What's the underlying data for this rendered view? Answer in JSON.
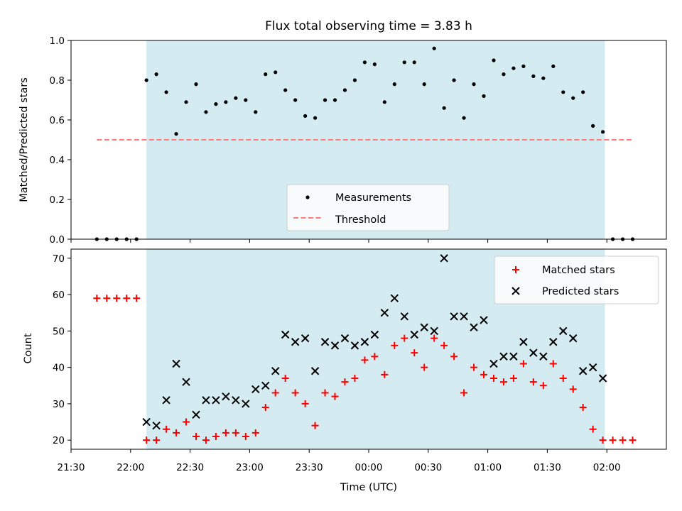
{
  "chart_data": [
    {
      "type": "scatter",
      "title": "Flux total observing time = 3.83 h",
      "ylabel": "Matched/Predicted stars",
      "ylim": [
        0,
        1.0
      ],
      "yticks": [
        0.0,
        0.2,
        0.4,
        0.6,
        0.8,
        1.0
      ],
      "yticklabels": [
        "0.0",
        "0.2",
        "0.4",
        "0.6",
        "0.8",
        "1.0"
      ],
      "shaded_interval": [
        "22:08",
        "01:59"
      ],
      "shade_color": "#d4ebf1",
      "legend_position": "lower-center",
      "series": [
        {
          "name": "Measurements",
          "marker": "dot",
          "color": "#000000",
          "points": [
            [
              "21:43",
              0.0
            ],
            [
              "21:48",
              0.0
            ],
            [
              "21:53",
              0.0
            ],
            [
              "21:58",
              0.0
            ],
            [
              "22:03",
              0.0
            ],
            [
              "22:08",
              0.8
            ],
            [
              "22:13",
              0.83
            ],
            [
              "22:18",
              0.74
            ],
            [
              "22:23",
              0.53
            ],
            [
              "22:28",
              0.69
            ],
            [
              "22:33",
              0.78
            ],
            [
              "22:38",
              0.64
            ],
            [
              "22:43",
              0.68
            ],
            [
              "22:48",
              0.69
            ],
            [
              "22:53",
              0.71
            ],
            [
              "22:58",
              0.7
            ],
            [
              "23:03",
              0.64
            ],
            [
              "23:08",
              0.83
            ],
            [
              "23:13",
              0.84
            ],
            [
              "23:18",
              0.75
            ],
            [
              "23:23",
              0.7
            ],
            [
              "23:28",
              0.62
            ],
            [
              "23:33",
              0.61
            ],
            [
              "23:38",
              0.7
            ],
            [
              "23:43",
              0.7
            ],
            [
              "23:48",
              0.75
            ],
            [
              "23:53",
              0.8
            ],
            [
              "23:58",
              0.89
            ],
            [
              "00:03",
              0.88
            ],
            [
              "00:08",
              0.69
            ],
            [
              "00:13",
              0.78
            ],
            [
              "00:18",
              0.89
            ],
            [
              "00:23",
              0.89
            ],
            [
              "00:28",
              0.78
            ],
            [
              "00:33",
              0.96
            ],
            [
              "00:38",
              0.66
            ],
            [
              "00:43",
              0.8
            ],
            [
              "00:48",
              0.61
            ],
            [
              "00:53",
              0.78
            ],
            [
              "00:58",
              0.72
            ],
            [
              "01:03",
              0.9
            ],
            [
              "01:08",
              0.83
            ],
            [
              "01:13",
              0.86
            ],
            [
              "01:18",
              0.87
            ],
            [
              "01:23",
              0.82
            ],
            [
              "01:28",
              0.81
            ],
            [
              "01:33",
              0.87
            ],
            [
              "01:38",
              0.74
            ],
            [
              "01:43",
              0.71
            ],
            [
              "01:48",
              0.74
            ],
            [
              "01:53",
              0.57
            ],
            [
              "01:58",
              0.54
            ],
            [
              "02:03",
              0.0
            ],
            [
              "02:08",
              0.0
            ],
            [
              "02:13",
              0.0
            ]
          ]
        },
        {
          "name": "Threshold",
          "marker": "dashed-line",
          "color": "#ff7b7b",
          "points": [
            [
              "21:43",
              0.5
            ],
            [
              "02:13",
              0.5
            ]
          ]
        }
      ]
    },
    {
      "type": "scatter",
      "xlabel": "Time (UTC)",
      "ylabel": "Count",
      "ylim": [
        17.5,
        72.5
      ],
      "yticks": [
        20,
        30,
        40,
        50,
        60,
        70
      ],
      "yticklabels": [
        "20",
        "30",
        "40",
        "50",
        "60",
        "70"
      ],
      "xticks": [
        "21:30",
        "22:00",
        "22:30",
        "23:00",
        "23:30",
        "00:00",
        "00:30",
        "01:00",
        "01:30",
        "02:00"
      ],
      "xlim": [
        "21:30",
        "02:30"
      ],
      "shaded_interval": [
        "22:08",
        "01:59"
      ],
      "shade_color": "#d4ebf1",
      "legend_position": "top-right",
      "series": [
        {
          "name": "Matched stars",
          "marker": "plus",
          "color": "#ff0000",
          "points": [
            [
              "21:43",
              59
            ],
            [
              "21:48",
              59
            ],
            [
              "21:53",
              59
            ],
            [
              "21:58",
              59
            ],
            [
              "22:03",
              59
            ],
            [
              "22:08",
              20
            ],
            [
              "22:13",
              20
            ],
            [
              "22:18",
              23
            ],
            [
              "22:23",
              22
            ],
            [
              "22:28",
              25
            ],
            [
              "22:33",
              21
            ],
            [
              "22:38",
              20
            ],
            [
              "22:43",
              21
            ],
            [
              "22:48",
              22
            ],
            [
              "22:53",
              22
            ],
            [
              "22:58",
              21
            ],
            [
              "23:03",
              22
            ],
            [
              "23:08",
              29
            ],
            [
              "23:13",
              33
            ],
            [
              "23:18",
              37
            ],
            [
              "23:23",
              33
            ],
            [
              "23:28",
              30
            ],
            [
              "23:33",
              24
            ],
            [
              "23:38",
              33
            ],
            [
              "23:43",
              32
            ],
            [
              "23:48",
              36
            ],
            [
              "23:53",
              37
            ],
            [
              "23:58",
              42
            ],
            [
              "00:03",
              43
            ],
            [
              "00:08",
              38
            ],
            [
              "00:13",
              46
            ],
            [
              "00:18",
              48
            ],
            [
              "00:23",
              44
            ],
            [
              "00:28",
              40
            ],
            [
              "00:33",
              48
            ],
            [
              "00:38",
              46
            ],
            [
              "00:43",
              43
            ],
            [
              "00:48",
              33
            ],
            [
              "00:53",
              40
            ],
            [
              "00:58",
              38
            ],
            [
              "01:03",
              37
            ],
            [
              "01:08",
              36
            ],
            [
              "01:13",
              37
            ],
            [
              "01:18",
              41
            ],
            [
              "01:23",
              36
            ],
            [
              "01:28",
              35
            ],
            [
              "01:33",
              41
            ],
            [
              "01:38",
              37
            ],
            [
              "01:43",
              34
            ],
            [
              "01:48",
              29
            ],
            [
              "01:53",
              23
            ],
            [
              "01:58",
              20
            ],
            [
              "02:03",
              20
            ],
            [
              "02:08",
              20
            ],
            [
              "02:13",
              20
            ]
          ]
        },
        {
          "name": "Predicted stars",
          "marker": "x",
          "color": "#000000",
          "points": [
            [
              "22:08",
              25
            ],
            [
              "22:13",
              24
            ],
            [
              "22:18",
              31
            ],
            [
              "22:23",
              41
            ],
            [
              "22:28",
              36
            ],
            [
              "22:33",
              27
            ],
            [
              "22:38",
              31
            ],
            [
              "22:43",
              31
            ],
            [
              "22:48",
              32
            ],
            [
              "22:53",
              31
            ],
            [
              "22:58",
              30
            ],
            [
              "23:03",
              34
            ],
            [
              "23:08",
              35
            ],
            [
              "23:13",
              39
            ],
            [
              "23:18",
              49
            ],
            [
              "23:23",
              47
            ],
            [
              "23:28",
              48
            ],
            [
              "23:33",
              39
            ],
            [
              "23:38",
              47
            ],
            [
              "23:43",
              46
            ],
            [
              "23:48",
              48
            ],
            [
              "23:53",
              46
            ],
            [
              "23:58",
              47
            ],
            [
              "00:03",
              49
            ],
            [
              "00:08",
              55
            ],
            [
              "00:13",
              59
            ],
            [
              "00:18",
              54
            ],
            [
              "00:23",
              49
            ],
            [
              "00:28",
              51
            ],
            [
              "00:33",
              50
            ],
            [
              "00:38",
              70
            ],
            [
              "00:43",
              54
            ],
            [
              "00:48",
              54
            ],
            [
              "00:53",
              51
            ],
            [
              "00:58",
              53
            ],
            [
              "01:03",
              41
            ],
            [
              "01:08",
              43
            ],
            [
              "01:13",
              43
            ],
            [
              "01:18",
              47
            ],
            [
              "01:23",
              44
            ],
            [
              "01:28",
              43
            ],
            [
              "01:33",
              47
            ],
            [
              "01:38",
              50
            ],
            [
              "01:43",
              48
            ],
            [
              "01:48",
              39
            ],
            [
              "01:53",
              40
            ],
            [
              "01:58",
              37
            ]
          ]
        }
      ]
    }
  ]
}
